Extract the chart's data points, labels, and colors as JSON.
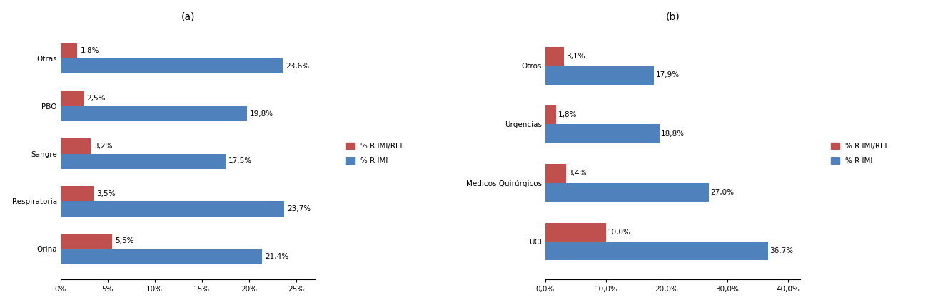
{
  "chart_a": {
    "title": "(a)",
    "categories": [
      "Orina",
      "Respiratoria",
      "Sangre",
      "PBO",
      "Otras"
    ],
    "rimi_rel": [
      5.5,
      3.5,
      3.2,
      2.5,
      1.8
    ],
    "rimi": [
      21.4,
      23.7,
      17.5,
      19.8,
      23.6
    ],
    "rimi_rel_labels": [
      "5,5%",
      "3,5%",
      "3,2%",
      "2,5%",
      "1,8%"
    ],
    "rimi_labels": [
      "21,4%",
      "23,7%",
      "17,5%",
      "19,8%",
      "23,6%"
    ],
    "xlim": [
      0,
      27
    ],
    "xticks": [
      0,
      5,
      10,
      15,
      20,
      25
    ],
    "xticklabels": [
      "0%",
      "5%",
      "10%",
      "15%",
      "20%",
      "25%"
    ]
  },
  "chart_b": {
    "title": "(b)",
    "categories": [
      "UCI",
      "Médicos Quirúrgicos",
      "Urgencias",
      "Otros"
    ],
    "rimi_rel": [
      10.0,
      3.4,
      1.8,
      3.1
    ],
    "rimi": [
      36.7,
      27.0,
      18.8,
      17.9
    ],
    "rimi_rel_labels": [
      "10,0%",
      "3,4%",
      "1,8%",
      "3,1%"
    ],
    "rimi_labels": [
      "36,7%",
      "27,0%",
      "18,8%",
      "17,9%"
    ],
    "xlim": [
      0,
      42
    ],
    "xticks": [
      0,
      10,
      20,
      30,
      40
    ],
    "xticklabels": [
      "0,0%",
      "10,0%",
      "20,0%",
      "30,0%",
      "40,0%"
    ]
  },
  "color_rimi_rel": "#C0504D",
  "color_rimi": "#4F81BD",
  "bar_height": 0.32,
  "label_fontsize": 7.5,
  "tick_fontsize": 7.5,
  "title_fontsize": 10,
  "legend_label_rel": "% R IMI/REL",
  "legend_label_rimi": "% R IMI",
  "background_color": "#FFFFFF"
}
